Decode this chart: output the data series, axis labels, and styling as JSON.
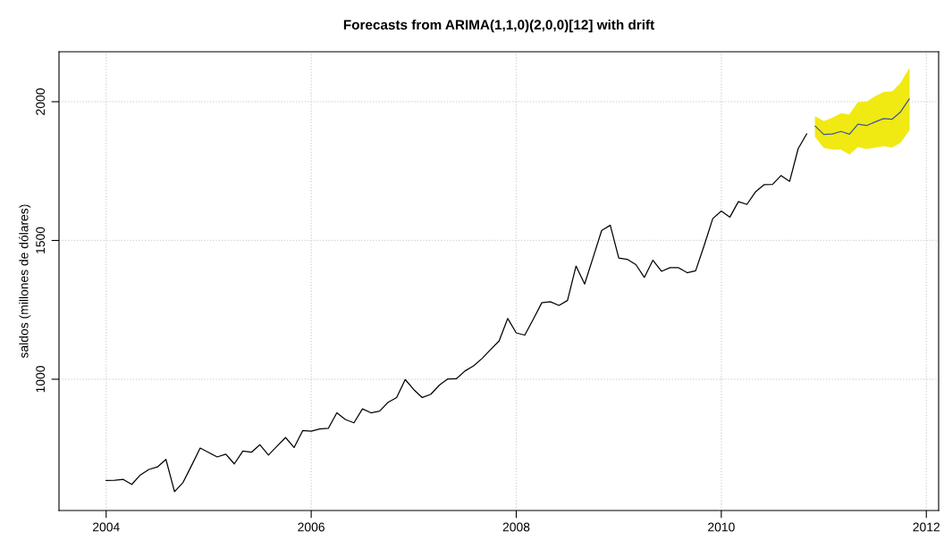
{
  "chart_data": {
    "type": "line",
    "title": "Forecasts from ARIMA(1,1,0)(2,0,0)[12] with drift",
    "ylabel": "saldos (millones de dólares)",
    "xlim": [
      2003.54,
      2012.12
    ],
    "ylim": [
      527,
      2180
    ],
    "xticks": [
      2004,
      2006,
      2008,
      2010,
      2012
    ],
    "yticks": [
      1000,
      1500,
      2000
    ],
    "grid": true,
    "line_style": "solid",
    "marker": "none",
    "series": [
      {
        "color": "#000000",
        "x": [
          2004.0,
          2004.083,
          2004.167,
          2004.25,
          2004.333,
          2004.417,
          2004.5,
          2004.583,
          2004.667,
          2004.75,
          2004.833,
          2004.917,
          2005.0,
          2005.083,
          2005.167,
          2005.25,
          2005.333,
          2005.417,
          2005.5,
          2005.583,
          2005.667,
          2005.75,
          2005.833,
          2005.917,
          2006.0,
          2006.083,
          2006.167,
          2006.25,
          2006.333,
          2006.417,
          2006.5,
          2006.583,
          2006.667,
          2006.75,
          2006.833,
          2006.917,
          2007.0,
          2007.083,
          2007.167,
          2007.25,
          2007.333,
          2007.417,
          2007.5,
          2007.583,
          2007.667,
          2007.75,
          2007.833,
          2007.917,
          2008.0,
          2008.083,
          2008.167,
          2008.25,
          2008.333,
          2008.417,
          2008.5,
          2008.583,
          2008.667,
          2008.75,
          2008.833,
          2008.917,
          2009.0,
          2009.083,
          2009.167,
          2009.25,
          2009.333,
          2009.417,
          2009.5,
          2009.583,
          2009.667,
          2009.75,
          2009.833,
          2009.917,
          2010.0,
          2010.083,
          2010.167,
          2010.25,
          2010.333,
          2010.417,
          2010.5,
          2010.583,
          2010.667,
          2010.75,
          2010.833
        ],
        "values": [
          635,
          636,
          639,
          621,
          655,
          675,
          684,
          711,
          595,
          628,
          689,
          752,
          736,
          720,
          730,
          695,
          741,
          737,
          764,
          727,
          759,
          790,
          754,
          815,
          813,
          821,
          823,
          879,
          855,
          843,
          893,
          879,
          885,
          917,
          934,
          999,
          963,
          934,
          946,
          979,
          1001,
          1002,
          1030,
          1048,
          1075,
          1107,
          1138,
          1219,
          1167,
          1159,
          1217,
          1276,
          1279,
          1266,
          1284,
          1408,
          1343,
          1439,
          1536,
          1555,
          1437,
          1432,
          1413,
          1367,
          1429,
          1389,
          1402,
          1402,
          1384,
          1391,
          1482,
          1579,
          1606,
          1584,
          1640,
          1630,
          1675,
          1701,
          1702,
          1734,
          1713,
          1831,
          1884
        ]
      },
      {
        "color": "#3b55a3",
        "colors": [
          "#f1e912",
          "#f1e912",
          "#f1e912",
          "#f1e912",
          "#f1e912",
          "#f1e912",
          "#f1e912",
          "#f1e912",
          "#f1e912",
          "#f1e912",
          "#f1e912",
          "#f1e912"
        ],
        "x": [
          2010.917,
          2011.0,
          2011.083,
          2011.167,
          2011.25,
          2011.333,
          2011.417,
          2011.5,
          2011.583,
          2011.667,
          2011.75,
          2011.833
        ],
        "values": [
          1912,
          1882,
          1884,
          1893,
          1883,
          1919,
          1914,
          1927,
          1939,
          1937,
          1964,
          2010
        ],
        "lower": [
          1874,
          1835,
          1829,
          1829,
          1811,
          1838,
          1831,
          1836,
          1841,
          1836,
          1854,
          1898
        ],
        "upper": [
          1946,
          1929,
          1941,
          1957,
          1953,
          1997,
          1999,
          2018,
          2034,
          2036,
          2067,
          2118
        ]
      }
    ]
  }
}
